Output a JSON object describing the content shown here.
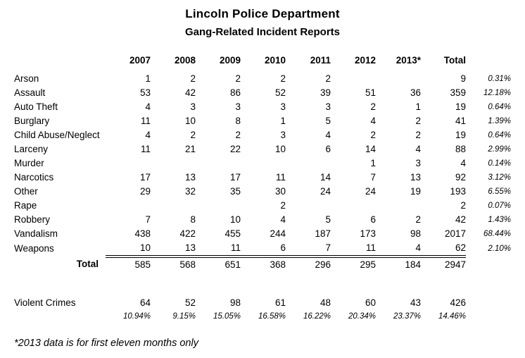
{
  "title": "Lincoln Police Department",
  "subtitle": "Gang-Related Incident Reports",
  "colors": {
    "text": "#000000",
    "background": "#ffffff"
  },
  "table": {
    "columns": [
      "2007",
      "2008",
      "2009",
      "2010",
      "2011",
      "2012",
      "2013*",
      "Total"
    ],
    "rows": [
      {
        "label": "Arson",
        "values": [
          "1",
          "2",
          "2",
          "2",
          "2",
          "",
          "",
          "9"
        ],
        "pct": "0.31%"
      },
      {
        "label": "Assault",
        "values": [
          "53",
          "42",
          "86",
          "52",
          "39",
          "51",
          "36",
          "359"
        ],
        "pct": "12.18%"
      },
      {
        "label": "Auto Theft",
        "values": [
          "4",
          "3",
          "3",
          "3",
          "3",
          "2",
          "1",
          "19"
        ],
        "pct": "0.64%"
      },
      {
        "label": "Burglary",
        "values": [
          "11",
          "10",
          "8",
          "1",
          "5",
          "4",
          "2",
          "41"
        ],
        "pct": "1.39%"
      },
      {
        "label": "Child Abuse/Neglect",
        "values": [
          "4",
          "2",
          "2",
          "3",
          "4",
          "2",
          "2",
          "19"
        ],
        "pct": "0.64%"
      },
      {
        "label": "Larceny",
        "values": [
          "11",
          "21",
          "22",
          "10",
          "6",
          "14",
          "4",
          "88"
        ],
        "pct": "2.99%"
      },
      {
        "label": "Murder",
        "values": [
          "",
          "",
          "",
          "",
          "",
          "1",
          "3",
          "4"
        ],
        "pct": "0.14%"
      },
      {
        "label": "Narcotics",
        "values": [
          "17",
          "13",
          "17",
          "11",
          "14",
          "7",
          "13",
          "92"
        ],
        "pct": "3.12%"
      },
      {
        "label": "Other",
        "values": [
          "29",
          "32",
          "35",
          "30",
          "24",
          "24",
          "19",
          "193"
        ],
        "pct": "6.55%"
      },
      {
        "label": "Rape",
        "values": [
          "",
          "",
          "",
          "2",
          "",
          "",
          "",
          "2"
        ],
        "pct": "0.07%"
      },
      {
        "label": "Robbery",
        "values": [
          "7",
          "8",
          "10",
          "4",
          "5",
          "6",
          "2",
          "42"
        ],
        "pct": "1.43%"
      },
      {
        "label": "Vandalism",
        "values": [
          "438",
          "422",
          "455",
          "244",
          "187",
          "173",
          "98",
          "2017"
        ],
        "pct": "68.44%"
      },
      {
        "label": "Weapons",
        "values": [
          "10",
          "13",
          "11",
          "6",
          "7",
          "11",
          "4",
          "62"
        ],
        "pct": "2.10%"
      }
    ],
    "total_row": {
      "label": "Total",
      "values": [
        "585",
        "568",
        "651",
        "368",
        "296",
        "295",
        "184",
        "2947"
      ]
    }
  },
  "violent_crimes": {
    "label": "Violent Crimes",
    "values": [
      "64",
      "52",
      "98",
      "61",
      "48",
      "60",
      "43",
      "426"
    ],
    "percents": [
      "10.94%",
      "9.15%",
      "15.05%",
      "16.58%",
      "16.22%",
      "20.34%",
      "23.37%",
      "14.46%"
    ]
  },
  "footnote": "*2013 data is for first eleven months only"
}
